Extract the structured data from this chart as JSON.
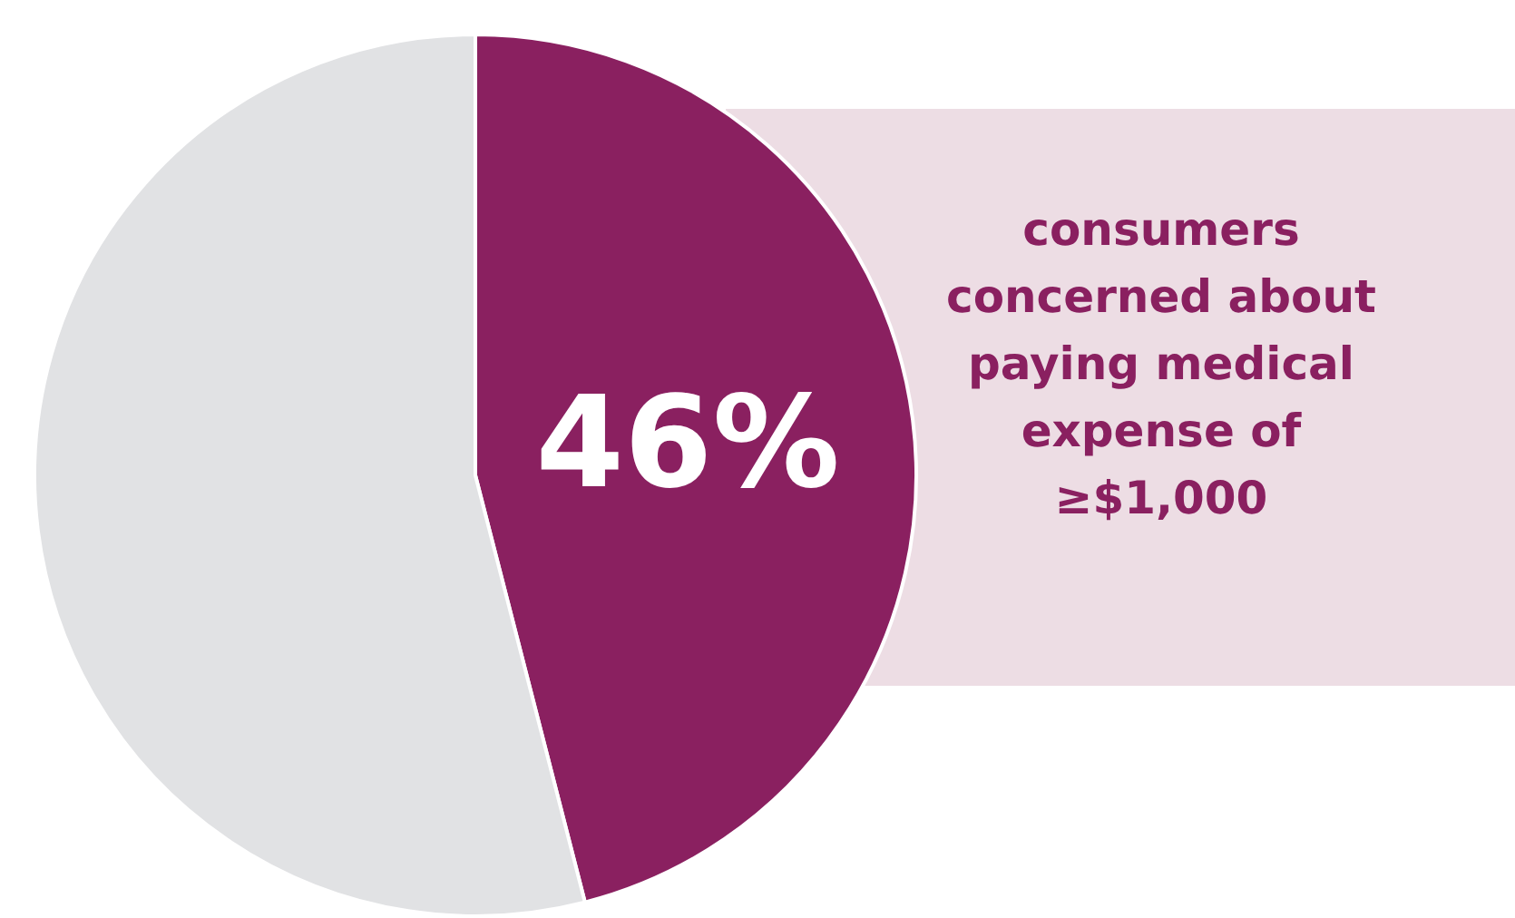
{
  "chart_data": {
    "type": "pie",
    "categories": [
      null,
      null
    ],
    "values": [
      46,
      54
    ],
    "colors": [
      "#8a2060",
      "#e1e2e4"
    ],
    "value_labels": [
      "46%",
      null
    ],
    "annotations": [
      "consumers concerned about paying medical expense of ≥$1,000"
    ]
  }
}
